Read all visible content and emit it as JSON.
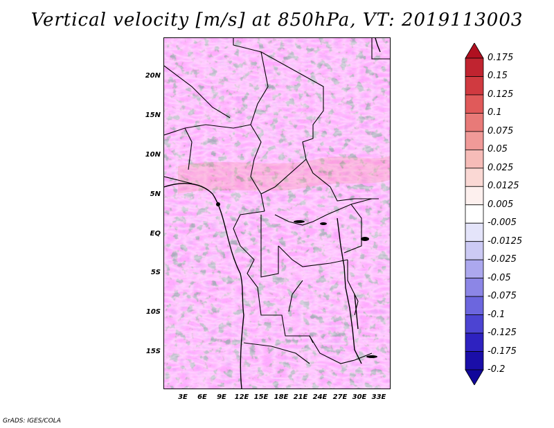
{
  "title": "Vertical velocity [m/s] at 850hPa, VT: 2019113003",
  "footer": "GrADS: IGES/COLA",
  "map": {
    "y_labels": [
      "20N",
      "15N",
      "10N",
      "5N",
      "EQ",
      "5S",
      "10S",
      "15S"
    ],
    "x_labels": [
      "3E",
      "6E",
      "9E",
      "12E",
      "15E",
      "18E",
      "21E",
      "24E",
      "27E",
      "30E",
      "33E"
    ]
  },
  "colorbar": {
    "labels": [
      "0.175",
      "0.15",
      "0.125",
      "0.1",
      "0.075",
      "0.05",
      "0.025",
      "0.0125",
      "0.005",
      "-0.005",
      "-0.0125",
      "-0.025",
      "-0.05",
      "-0.075",
      "-0.1",
      "-0.125",
      "-0.175",
      "-0.2"
    ],
    "colors": [
      "#b01020",
      "#c02430",
      "#d03a40",
      "#e05a5a",
      "#e87a78",
      "#f09a98",
      "#f6bcb8",
      "#fad8d4",
      "#fdf0ee",
      "#ffffff",
      "#e4e4fa",
      "#cccaf4",
      "#aca8ee",
      "#8c86e6",
      "#6c66de",
      "#4c44d2",
      "#2e22c0",
      "#1a0ea8",
      "#10069a"
    ]
  }
}
